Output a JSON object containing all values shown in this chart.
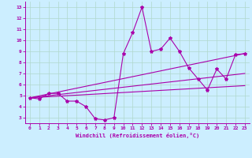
{
  "background_color": "#cceeff",
  "grid_color": "#aaddcc",
  "line_color": "#aa00aa",
  "xlabel": "Windchill (Refroidissement éolien,°C)",
  "xlim": [
    -0.5,
    23.5
  ],
  "ylim": [
    2.5,
    13.5
  ],
  "xticks": [
    0,
    1,
    2,
    3,
    4,
    5,
    6,
    7,
    8,
    9,
    10,
    11,
    12,
    13,
    14,
    15,
    16,
    17,
    18,
    19,
    20,
    21,
    22,
    23
  ],
  "yticks": [
    3,
    4,
    5,
    6,
    7,
    8,
    9,
    10,
    11,
    12,
    13
  ],
  "main_x": [
    0,
    1,
    2,
    3,
    4,
    5,
    6,
    7,
    8,
    9,
    10,
    11,
    12,
    13,
    14,
    15,
    16,
    17,
    18,
    19,
    20,
    21,
    22,
    23
  ],
  "main_y": [
    4.8,
    4.7,
    5.2,
    5.2,
    4.5,
    4.5,
    4.0,
    2.9,
    2.8,
    3.0,
    8.8,
    10.7,
    13.0,
    9.0,
    9.2,
    10.2,
    9.0,
    7.5,
    6.5,
    5.5,
    7.4,
    6.5,
    8.7,
    8.8
  ],
  "line1_x": [
    0,
    23
  ],
  "line1_y": [
    4.8,
    5.9
  ],
  "line2_x": [
    0,
    23
  ],
  "line2_y": [
    4.8,
    7.0
  ],
  "line3_x": [
    0,
    23
  ],
  "line3_y": [
    4.8,
    8.8
  ],
  "marker": "*",
  "markersize": 3,
  "linewidth": 0.8
}
